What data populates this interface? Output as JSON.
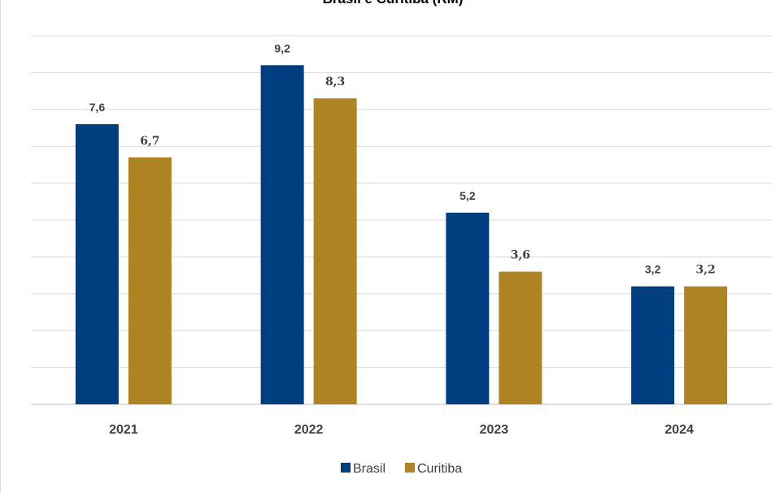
{
  "chart_data": {
    "type": "bar",
    "title": "Brasil e Curitiba (RM)",
    "categories": [
      "2021",
      "2022",
      "2023",
      "2024"
    ],
    "series": [
      {
        "name": "Brasil",
        "color": "#003f7f",
        "values": [
          7.6,
          9.2,
          5.2,
          3.2
        ],
        "labels": [
          "7,6",
          "9,2",
          "5,2",
          "3,2"
        ]
      },
      {
        "name": "Curitiba",
        "color": "#ad8421",
        "values": [
          6.7,
          8.3,
          3.6,
          3.2
        ],
        "labels": [
          "6,7",
          "8,3",
          "3,6",
          "3,2"
        ]
      }
    ],
    "ylim": [
      0,
      10
    ],
    "grid": true,
    "legend": "bottom"
  }
}
